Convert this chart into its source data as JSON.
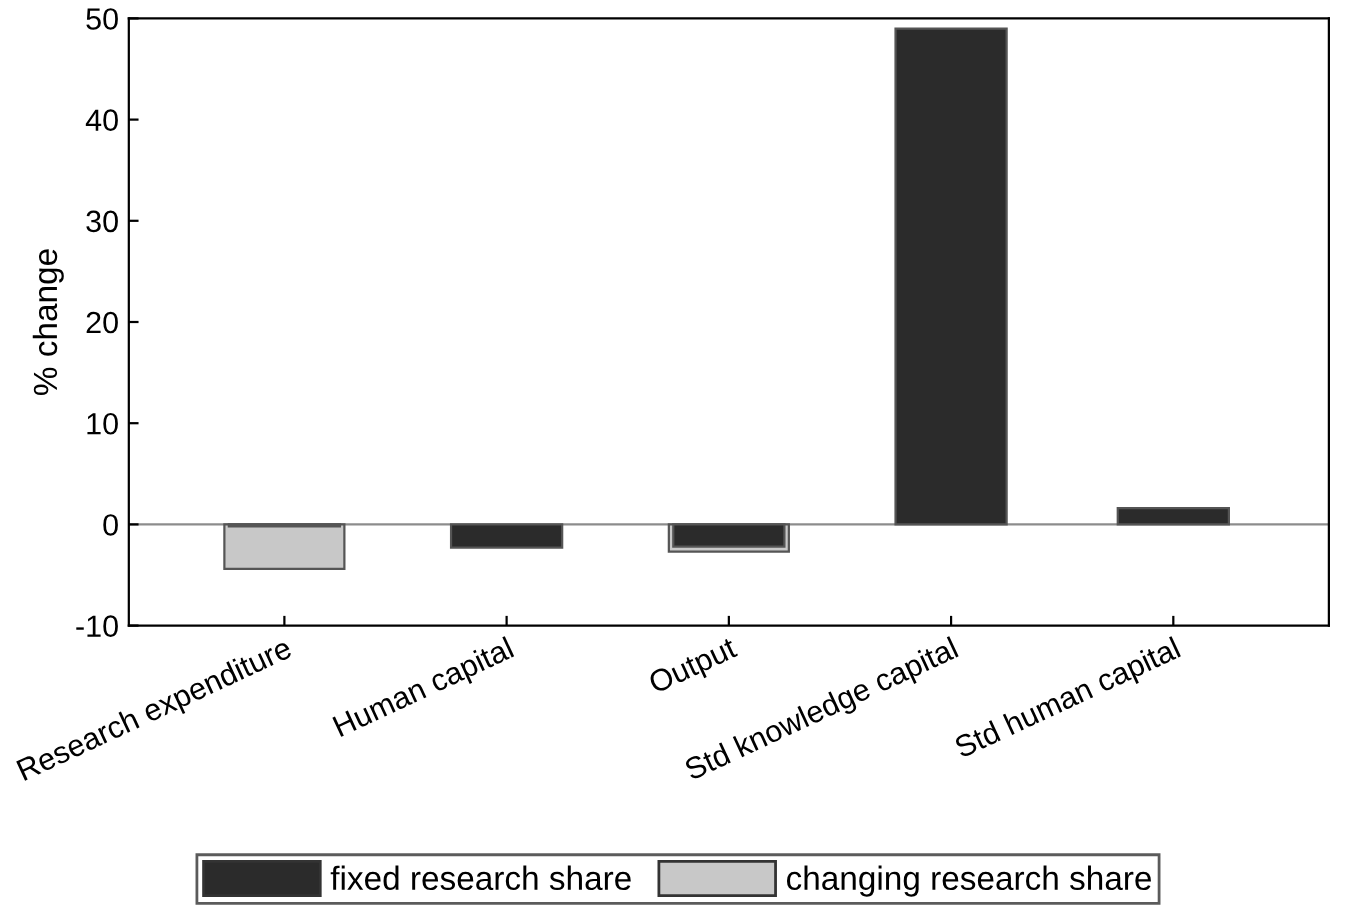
{
  "chart_data": {
    "type": "bar",
    "ylabel": "% change",
    "categories": [
      "Research expenditure",
      "Human capital",
      "Output",
      "Std knowledge capital",
      "Std human capital"
    ],
    "series": [
      {
        "name": "fixed research share",
        "color": "#2b2b2b",
        "values": [
          -0.2,
          -2.3,
          -2.2,
          49,
          1.6
        ]
      },
      {
        "name": "changing research share",
        "color": "#c8c8c8",
        "values": [
          -4.4,
          null,
          -2.7,
          null,
          null
        ]
      }
    ],
    "ylim": [
      -10,
      50
    ],
    "yticks": [
      -10,
      0,
      10,
      20,
      30,
      40,
      50
    ],
    "grid": false,
    "legend": "bottom",
    "ref_lines": [
      {
        "axis": "y",
        "value": 0,
        "color": "#8c8c8c"
      }
    ]
  }
}
